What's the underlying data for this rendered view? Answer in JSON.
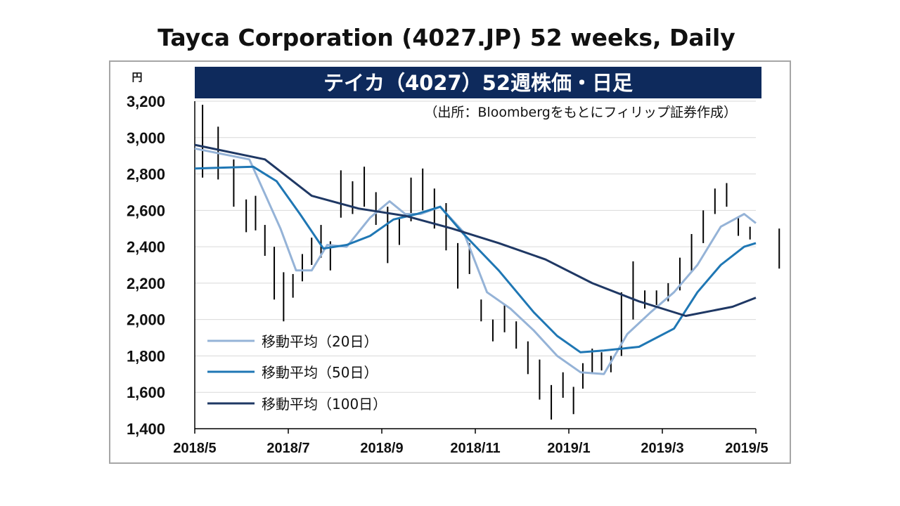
{
  "page": {
    "title": "Tayca Corporation (4027.JP) 52 weeks, Daily"
  },
  "colors": {
    "banner_bg": "#0e2a5c",
    "banner_text": "#ffffff",
    "ma20": "#95b3d7",
    "ma50": "#1f77b4",
    "ma100": "#1f3864",
    "candle": "#000000",
    "grid": "#d9d9d9"
  },
  "chart_data": {
    "type": "line",
    "chart_subtype": "candlestick with moving averages",
    "title": "テイカ（4027）52週株価・日足",
    "subtitle": "（出所：Bloombergをもとにフィリップ証券作成）",
    "ylabel": "円",
    "ylim": [
      1400,
      3200
    ],
    "y_ticks": [
      1400,
      1600,
      1800,
      2000,
      2200,
      2400,
      2600,
      2800,
      3000,
      3200
    ],
    "y_tick_labels": [
      "1,400",
      "1,600",
      "1,800",
      "2,000",
      "2,200",
      "2,400",
      "2,600",
      "2,800",
      "3,000",
      "3,200"
    ],
    "x_tick_labels": [
      "2018/5",
      "2018/7",
      "2018/9",
      "2018/11",
      "2019/1",
      "2019/3",
      "2019/5"
    ],
    "grid": "horizontal",
    "legend_position": "bottom-left",
    "legend": [
      "移動平均（20日）",
      "移動平均（50日）",
      "移動平均（100日）"
    ],
    "price_range": [
      [
        "2018/5",
        3180,
        2780
      ],
      [
        "2018/5",
        3060,
        2770
      ],
      [
        "2018/5",
        2880,
        2620
      ],
      [
        "2018/6",
        2660,
        2480
      ],
      [
        "2018/6",
        2680,
        2490
      ],
      [
        "2018/6",
        2520,
        2350
      ],
      [
        "2018/6",
        2400,
        2110
      ],
      [
        "2018/6",
        2260,
        1990
      ],
      [
        "2018/7",
        2250,
        2120
      ],
      [
        "2018/7",
        2360,
        2210
      ],
      [
        "2018/7",
        2450,
        2300
      ],
      [
        "2018/7",
        2520,
        2340
      ],
      [
        "2018/7",
        2430,
        2270
      ],
      [
        "2018/8",
        2820,
        2560
      ],
      [
        "2018/8",
        2760,
        2580
      ],
      [
        "2018/8",
        2840,
        2620
      ],
      [
        "2018/8",
        2700,
        2520
      ],
      [
        "2018/9",
        2620,
        2310
      ],
      [
        "2018/9",
        2560,
        2410
      ],
      [
        "2018/9",
        2780,
        2540
      ],
      [
        "2018/9",
        2830,
        2600
      ],
      [
        "2018/10",
        2720,
        2500
      ],
      [
        "2018/10",
        2640,
        2380
      ],
      [
        "2018/10",
        2420,
        2170
      ],
      [
        "2018/10",
        2420,
        2250
      ],
      [
        "2018/11",
        2110,
        1990
      ],
      [
        "2018/11",
        2000,
        1880
      ],
      [
        "2018/11",
        2080,
        1930
      ],
      [
        "2018/11",
        1990,
        1840
      ],
      [
        "2018/12",
        1880,
        1700
      ],
      [
        "2018/12",
        1780,
        1560
      ],
      [
        "2018/12",
        1640,
        1450
      ],
      [
        "2018/12",
        1710,
        1570
      ],
      [
        "2019/1",
        1630,
        1480
      ],
      [
        "2019/1",
        1760,
        1620
      ],
      [
        "2019/1",
        1840,
        1700
      ],
      [
        "2019/1",
        1820,
        1720
      ],
      [
        "2019/1",
        1800,
        1710
      ],
      [
        "2019/2",
        2150,
        1800
      ],
      [
        "2019/2",
        2320,
        2000
      ],
      [
        "2019/2",
        2160,
        2060
      ],
      [
        "2019/2",
        2160,
        2080
      ],
      [
        "2019/3",
        2200,
        2100
      ],
      [
        "2019/3",
        2340,
        2160
      ],
      [
        "2019/3",
        2470,
        2260
      ],
      [
        "2019/3",
        2600,
        2420
      ],
      [
        "2019/4",
        2720,
        2580
      ],
      [
        "2019/4",
        2750,
        2620
      ],
      [
        "2019/4",
        2560,
        2460
      ],
      [
        "2019/4",
        2510,
        2440
      ],
      [
        "2019/5",
        2500,
        2280
      ]
    ],
    "series": [
      {
        "name": "移動平均（20日）",
        "x": [
          "2018/5",
          "2018/6",
          "2018/6",
          "2018/6",
          "2018/7",
          "2018/7",
          "2018/7",
          "2018/8",
          "2018/8",
          "2018/9",
          "2018/9",
          "2018/9",
          "2018/10",
          "2018/10",
          "2018/11",
          "2018/11",
          "2018/12",
          "2018/12",
          "2019/1",
          "2019/1",
          "2019/2",
          "2019/2",
          "2019/3",
          "2019/3",
          "2019/4",
          "2019/4",
          "2019/5"
        ],
        "values": [
          2940,
          2880,
          2690,
          2500,
          2270,
          2270,
          2410,
          2400,
          2560,
          2650,
          2580,
          2580,
          2620,
          2480,
          2150,
          2060,
          1940,
          1800,
          1710,
          1700,
          1920,
          2040,
          2150,
          2300,
          2510,
          2580,
          2530
        ]
      },
      {
        "name": "移動平均（50日）",
        "x": [
          "2018/5",
          "2018/6",
          "2018/6",
          "2018/7",
          "2018/7",
          "2018/8",
          "2018/8",
          "2018/9",
          "2018/9",
          "2018/10",
          "2018/10",
          "2018/11",
          "2018/12",
          "2018/12",
          "2019/1",
          "2019/1",
          "2019/2",
          "2019/3",
          "2019/3",
          "2019/4",
          "2019/4",
          "2019/5"
        ],
        "values": [
          2830,
          2840,
          2760,
          2580,
          2390,
          2410,
          2460,
          2550,
          2580,
          2620,
          2470,
          2270,
          2040,
          1910,
          1820,
          1830,
          1850,
          1950,
          2150,
          2300,
          2400,
          2420
        ]
      },
      {
        "name": "移動平均（100日）",
        "x": [
          "2018/5",
          "2018/6",
          "2018/7",
          "2018/8",
          "2018/9",
          "2018/10",
          "2018/11",
          "2018/12",
          "2019/1",
          "2019/2",
          "2019/3",
          "2019/4",
          "2019/5"
        ],
        "values": [
          2960,
          2880,
          2680,
          2610,
          2570,
          2500,
          2420,
          2330,
          2200,
          2100,
          2020,
          2070,
          2120
        ]
      }
    ]
  }
}
